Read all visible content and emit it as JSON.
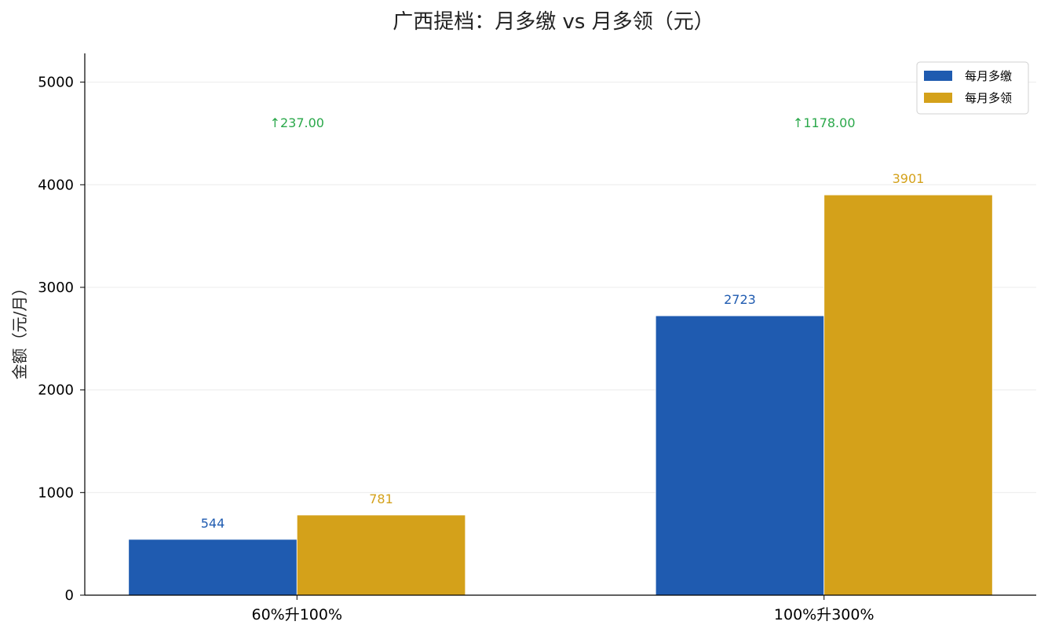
{
  "chart_data": {
    "type": "bar",
    "title": "广西提档：月多缴 vs 月多领（元）",
    "xlabel": "",
    "ylabel": "金额（元/月）",
    "ylim": [
      0,
      5280
    ],
    "yticks": [
      0,
      1000,
      2000,
      3000,
      4000,
      5000
    ],
    "grid": true,
    "legend_position": "top-right",
    "categories": [
      "60%升100%",
      "100%升300%"
    ],
    "series": [
      {
        "name": "每月多缴",
        "values": [
          544,
          2723
        ],
        "labels": [
          "544",
          "2723"
        ],
        "color": "#1f5bb0"
      },
      {
        "name": "每月多领",
        "values": [
          781,
          3901
        ],
        "labels": [
          "781",
          "3901"
        ],
        "color": "#d4a11a"
      }
    ],
    "annotations": [
      {
        "text": "↑237.00",
        "category_index": 0,
        "y": 4560
      },
      {
        "text": "↑1178.00",
        "category_index": 1,
        "y": 4560
      }
    ],
    "annotation_color": "#2aa84a"
  }
}
